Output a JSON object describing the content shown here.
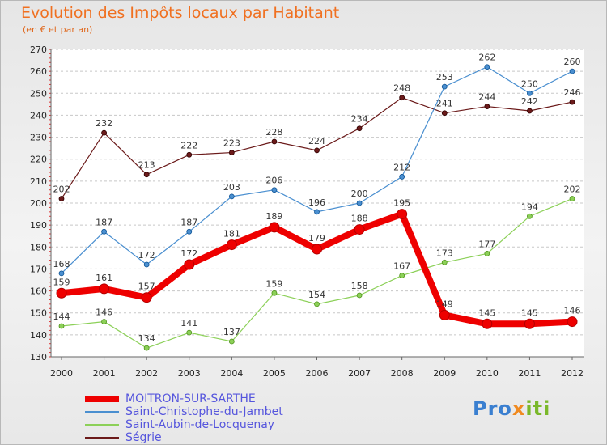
{
  "header": {
    "title": "Evolution des Impôts locaux par Habitant",
    "subtitle": "(en € et par an)"
  },
  "brand": {
    "part1": "Pro",
    "part2": "x",
    "part3": "iti"
  },
  "chart_data": {
    "type": "line",
    "title": "Evolution des Impôts locaux par Habitant",
    "subtitle": "(en € et par an)",
    "xlabel": "",
    "ylabel": "",
    "x": [
      2000,
      2001,
      2002,
      2003,
      2004,
      2005,
      2006,
      2007,
      2008,
      2009,
      2010,
      2011,
      2012
    ],
    "ylim": [
      130,
      270
    ],
    "yticks": [
      130,
      140,
      150,
      160,
      170,
      180,
      190,
      200,
      210,
      220,
      230,
      240,
      250,
      260,
      270
    ],
    "grid": "horizontal dashed",
    "legend_position": "bottom-left",
    "series": [
      {
        "name": "Ségrie",
        "color": "#6b1a1a",
        "emphasis": false,
        "values": [
          202,
          232,
          213,
          222,
          223,
          228,
          224,
          234,
          248,
          241,
          244,
          242,
          246
        ]
      },
      {
        "name": "Saint-Christophe-du-Jambet",
        "color": "#4a8fd0",
        "emphasis": false,
        "values": [
          168,
          187,
          172,
          187,
          203,
          206,
          196,
          200,
          212,
          253,
          262,
          250,
          260
        ]
      },
      {
        "name": "Saint-Aubin-de-Locquenay",
        "color": "#8cd058",
        "emphasis": false,
        "values": [
          144,
          146,
          134,
          141,
          137,
          159,
          154,
          158,
          167,
          173,
          177,
          194,
          202
        ]
      },
      {
        "name": "MOITRON-SUR-SARTHE",
        "color": "#ee0000",
        "emphasis": true,
        "values": [
          159,
          161,
          157,
          172,
          181,
          189,
          179,
          188,
          195,
          149,
          145,
          145,
          146
        ]
      }
    ],
    "legend": [
      {
        "name": "MOITRON-SUR-SARTHE",
        "color": "#ee0000",
        "emphasis": true
      },
      {
        "name": "Saint-Christophe-du-Jambet",
        "color": "#4a8fd0",
        "emphasis": false
      },
      {
        "name": "Saint-Aubin-de-Locquenay",
        "color": "#8cd058",
        "emphasis": false
      },
      {
        "name": "Ségrie",
        "color": "#6b1a1a",
        "emphasis": false
      }
    ]
  }
}
